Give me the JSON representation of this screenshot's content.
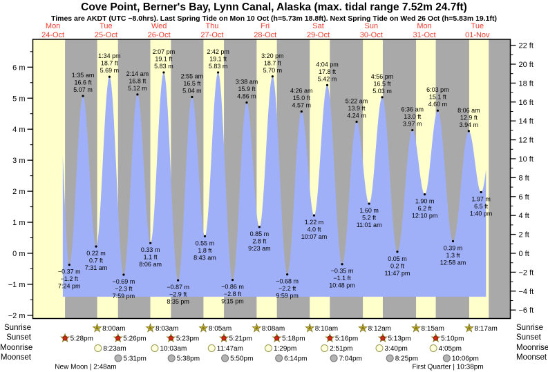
{
  "header": {
    "title": "Cove Point, Berner's Bay, Lynn Canal, Alaska (max. tidal range 7.52m 24.7ft)",
    "subtitle": "Times are AKDT (UTC −8.0hrs). Last Spring Tide on Mon 10 Oct (h=5.73m 18.8ft). Next Spring Tide on Wed 26 Oct (h=5.83m 19.1ft)"
  },
  "days": [
    {
      "dow": "Mon",
      "date": "24-Oct"
    },
    {
      "dow": "Tue",
      "date": "25-Oct"
    },
    {
      "dow": "Wed",
      "date": "26-Oct"
    },
    {
      "dow": "Thu",
      "date": "27-Oct"
    },
    {
      "dow": "Fri",
      "date": "28-Oct"
    },
    {
      "dow": "Sat",
      "date": "29-Oct"
    },
    {
      "dow": "Sun",
      "date": "30-Oct"
    },
    {
      "dow": "Mon",
      "date": "31-Oct"
    },
    {
      "dow": "Tue",
      "date": "01-Nov"
    }
  ],
  "footer": {
    "row_labels": [
      "Sunrise",
      "Sunset",
      "Moonrise",
      "Moonset"
    ],
    "moon_phases": [
      {
        "label": "New Moon | 2:48am",
        "t": 26.8
      },
      {
        "label": "First Quarter | 10:38pm",
        "t": 190.633
      }
    ]
  },
  "colors": {
    "day_band": "#ffffcc",
    "night_band": "#a9a9a9",
    "water": "#a0b0f8",
    "date_red": "#ee3b2f",
    "sun_star": "#c8b73b",
    "sun_star_edge": "#867a1e",
    "sunset_red": "#ce2a12",
    "sunset_red_edge": "#7a1505",
    "moonrise_fill": "#ffffdd",
    "moonrise_edge": "#99994d",
    "moonset_fill": "#b3b3b3",
    "moonset_edge": "#737373"
  },
  "chart_data": {
    "type": "area",
    "title": "Tide height curve, Cove Point, Berner's Bay",
    "xlabel": "days (Mon 24-Oct to Tue 01-Nov)",
    "ylabel": "tide height",
    "x_axis": {
      "unit": "hours_from_Mon_00:00",
      "start_hour": 2.9,
      "end_hour": 218.9,
      "days_shown": 9
    },
    "ylim_m": [
      -2.1,
      6.9
    ],
    "y_axis_left": {
      "unit": "m",
      "major_ticks": [
        6,
        5,
        4,
        3,
        2,
        1,
        0,
        -1,
        -2
      ],
      "minor_ticks": [
        6.5,
        5.5,
        4.5,
        3.5,
        2.5,
        1.5,
        0.5,
        -0.5,
        -1.5
      ]
    },
    "y_axis_right": {
      "unit": "ft",
      "major_ticks": [
        22,
        20,
        18,
        16,
        14,
        12,
        10,
        8,
        6,
        4,
        2,
        0,
        -2,
        -4,
        -6
      ],
      "minor_ticks": [
        21,
        19,
        17,
        15,
        13,
        11,
        9,
        7,
        5,
        3,
        1,
        -1,
        -3,
        -5
      ]
    },
    "tide_events": [
      {
        "t": 19.4,
        "m": -0.37,
        "type": "low",
        "time_label": "7:24 pm",
        "ft_label": "−1.2 ft",
        "m_label": "−0.37 m"
      },
      {
        "t": 25.583,
        "m": 5.07,
        "type": "high",
        "time_label": "1:35 am",
        "ft_label": "16.6 ft",
        "m_label": "5.07 m"
      },
      {
        "t": 31.517,
        "m": 0.22,
        "type": "low",
        "time_label": "7:31 am",
        "ft_label": "0.7 ft",
        "m_label": "0.22 m"
      },
      {
        "t": 37.567,
        "m": 5.69,
        "type": "high",
        "time_label": "1:34 pm",
        "ft_label": "18.7 ft",
        "m_label": "5.69 m"
      },
      {
        "t": 43.983,
        "m": -0.69,
        "type": "low",
        "time_label": "7:59 pm",
        "ft_label": "−2.3 ft",
        "m_label": "−0.69 m"
      },
      {
        "t": 50.233,
        "m": 5.12,
        "type": "high",
        "time_label": "2:14 am",
        "ft_label": "16.8 ft",
        "m_label": "5.12 m"
      },
      {
        "t": 56.1,
        "m": 0.33,
        "type": "low",
        "time_label": "8:06 am",
        "ft_label": "1.1 ft",
        "m_label": "0.33 m"
      },
      {
        "t": 62.117,
        "m": 5.83,
        "type": "high",
        "time_label": "2:07 pm",
        "ft_label": "19.1 ft",
        "m_label": "5.83 m"
      },
      {
        "t": 68.583,
        "m": -0.87,
        "type": "low",
        "time_label": "8:35 pm",
        "ft_label": "−2.9 ft",
        "m_label": "−0.87 m"
      },
      {
        "t": 74.917,
        "m": 5.04,
        "type": "high",
        "time_label": "2:55 am",
        "ft_label": "16.5 ft",
        "m_label": "5.04 m"
      },
      {
        "t": 80.717,
        "m": 0.55,
        "type": "low",
        "time_label": "8:43 am",
        "ft_label": "1.8 ft",
        "m_label": "0.55 m"
      },
      {
        "t": 86.7,
        "m": 5.83,
        "type": "high",
        "time_label": "2:42 pm",
        "ft_label": "19.1 ft",
        "m_label": "5.83 m"
      },
      {
        "t": 93.25,
        "m": -0.86,
        "type": "low",
        "time_label": "9:15 pm",
        "ft_label": "−2.8 ft",
        "m_label": "−0.86 m"
      },
      {
        "t": 99.633,
        "m": 4.86,
        "type": "high",
        "time_label": "3:38 am",
        "ft_label": "15.9 ft",
        "m_label": "4.86 m"
      },
      {
        "t": 105.383,
        "m": 0.85,
        "type": "low",
        "time_label": "9:23 am",
        "ft_label": "2.8 ft",
        "m_label": "0.85 m"
      },
      {
        "t": 111.333,
        "m": 5.7,
        "type": "high",
        "time_label": "3:20 pm",
        "ft_label": "18.7 ft",
        "m_label": "5.70 m"
      },
      {
        "t": 117.983,
        "m": -0.68,
        "type": "low",
        "time_label": "9:59 pm",
        "ft_label": "−2.2 ft",
        "m_label": "−0.68 m"
      },
      {
        "t": 124.433,
        "m": 4.57,
        "type": "high",
        "time_label": "4:26 am",
        "ft_label": "15.0 ft",
        "m_label": "4.57 m"
      },
      {
        "t": 130.117,
        "m": 1.22,
        "type": "low",
        "time_label": "10:07 am",
        "ft_label": "4.0 ft",
        "m_label": "1.22 m"
      },
      {
        "t": 136.067,
        "m": 5.42,
        "type": "high",
        "time_label": "4:04 pm",
        "ft_label": "17.8 ft",
        "m_label": "5.42 m"
      },
      {
        "t": 142.8,
        "m": -0.35,
        "type": "low",
        "time_label": "10:48 pm",
        "ft_label": "−1.1 ft",
        "m_label": "−0.35 m"
      },
      {
        "t": 149.367,
        "m": 4.24,
        "type": "high",
        "time_label": "5:22 am",
        "ft_label": "13.9 ft",
        "m_label": "4.24 m"
      },
      {
        "t": 155.017,
        "m": 1.6,
        "type": "low",
        "time_label": "11:01 am",
        "ft_label": "5.2 ft",
        "m_label": "1.60 m"
      },
      {
        "t": 160.933,
        "m": 5.03,
        "type": "high",
        "time_label": "4:56 pm",
        "ft_label": "16.5 ft",
        "m_label": "5.03 m"
      },
      {
        "t": 167.783,
        "m": 0.05,
        "type": "low",
        "time_label": "11:47 pm",
        "ft_label": "0.2 ft",
        "m_label": "0.05 m"
      },
      {
        "t": 174.6,
        "m": 3.97,
        "type": "high",
        "time_label": "6:36 am",
        "ft_label": "13.0 ft",
        "m_label": "3.97 m"
      },
      {
        "t": 180.167,
        "m": 1.9,
        "type": "low",
        "time_label": "12:10 pm",
        "ft_label": "6.2 ft",
        "m_label": "1.90 m"
      },
      {
        "t": 186.05,
        "m": 4.6,
        "type": "high",
        "time_label": "6:03 pm",
        "ft_label": "15.1 ft",
        "m_label": "4.60 m"
      },
      {
        "t": 192.967,
        "m": 0.39,
        "type": "low",
        "time_label": "12:58 am",
        "ft_label": "1.3 ft",
        "m_label": "0.39 m"
      },
      {
        "t": 200.1,
        "m": 3.94,
        "type": "high",
        "time_label": "8:06 am",
        "ft_label": "12.9 ft",
        "m_label": "3.94 m"
      },
      {
        "t": 205.667,
        "m": 1.97,
        "type": "low",
        "time_label": "1:40 pm",
        "ft_label": "6.5 ft",
        "m_label": "1.97 m"
      }
    ],
    "curve": {
      "start_t": 16.45,
      "end_t": 207.9,
      "start_virtual": {
        "t": 14.7,
        "m": 4.7
      },
      "end_virtual": {
        "t": 212.0,
        "m": 4.6
      },
      "fill_bottom_m": -1.4
    },
    "daylight_bands": [
      [
        2.9,
        17.467
      ],
      [
        32.0,
        41.433
      ],
      [
        56.05,
        65.383
      ],
      [
        80.083,
        89.35
      ],
      [
        104.133,
        113.3
      ],
      [
        128.167,
        137.267
      ],
      [
        152.2,
        161.217
      ],
      [
        176.25,
        185.167
      ],
      [
        200.283,
        209.13
      ]
    ],
    "astro_rows": [
      {
        "name": "sunrise",
        "icon": "sunrise-star-icon",
        "events": [
          {
            "t": 32.0,
            "label": "8:00am"
          },
          {
            "t": 56.05,
            "label": "8:03am"
          },
          {
            "t": 80.083,
            "label": "8:05am"
          },
          {
            "t": 104.133,
            "label": "8:08am"
          },
          {
            "t": 128.167,
            "label": "8:10am"
          },
          {
            "t": 152.2,
            "label": "8:12am"
          },
          {
            "t": 176.25,
            "label": "8:15am"
          },
          {
            "t": 200.283,
            "label": "8:17am"
          }
        ]
      },
      {
        "name": "sunset",
        "icon": "sunset-star-icon",
        "events": [
          {
            "t": 17.467,
            "label": "5:28pm"
          },
          {
            "t": 41.433,
            "label": "5:26pm"
          },
          {
            "t": 65.383,
            "label": "5:23pm"
          },
          {
            "t": 89.35,
            "label": "5:21pm"
          },
          {
            "t": 113.3,
            "label": "5:18pm"
          },
          {
            "t": 137.267,
            "label": "5:16pm"
          },
          {
            "t": 161.217,
            "label": "5:13pm"
          },
          {
            "t": 185.167,
            "label": "5:10pm"
          }
        ]
      },
      {
        "name": "moonrise",
        "icon": "moonrise-circle-icon",
        "events": [
          {
            "t": 32.383,
            "label": "8:23am"
          },
          {
            "t": 58.05,
            "label": "10:03am"
          },
          {
            "t": 83.783,
            "label": "11:47am"
          },
          {
            "t": 109.483,
            "label": "1:29pm"
          },
          {
            "t": 134.85,
            "label": "2:51pm"
          },
          {
            "t": 159.667,
            "label": "3:40pm"
          },
          {
            "t": 184.083,
            "label": "4:05pm"
          }
        ]
      },
      {
        "name": "moonset",
        "icon": "moonset-circle-icon",
        "events": [
          {
            "t": 41.517,
            "label": "5:31pm"
          },
          {
            "t": 65.633,
            "label": "5:38pm"
          },
          {
            "t": 89.833,
            "label": "5:50pm"
          },
          {
            "t": 114.233,
            "label": "6:14pm"
          },
          {
            "t": 139.067,
            "label": "7:04pm"
          },
          {
            "t": 164.417,
            "label": "8:25pm"
          },
          {
            "t": 190.1,
            "label": "10:06pm"
          }
        ]
      }
    ]
  }
}
